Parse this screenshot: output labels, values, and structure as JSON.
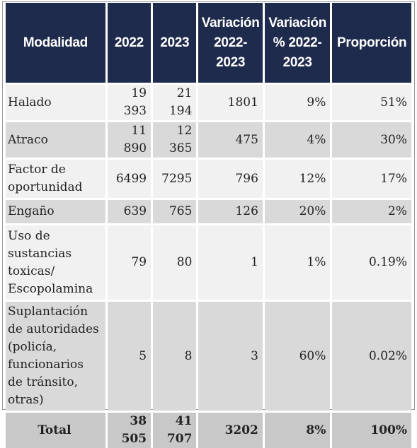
{
  "table": {
    "headers": [
      "Modalidad",
      "2022",
      "2023",
      "Variación 2022-2023",
      "Variación % 2022-2023",
      "Proporción"
    ],
    "rows": [
      {
        "modalidad": "Halado",
        "y2022": "19 393",
        "y2023": "21 194",
        "variacion": "1801",
        "variacion_pct": "9%",
        "proporcion": "51%"
      },
      {
        "modalidad": "Atraco",
        "y2022": "11 890",
        "y2023": "12 365",
        "variacion": "475",
        "variacion_pct": "4%",
        "proporcion": "30%"
      },
      {
        "modalidad": "Factor de oportunidad",
        "y2022": "6499",
        "y2023": "7295",
        "variacion": "796",
        "variacion_pct": "12%",
        "proporcion": "17%"
      },
      {
        "modalidad": "Engaño",
        "y2022": "639",
        "y2023": "765",
        "variacion": "126",
        "variacion_pct": "20%",
        "proporcion": "2%"
      },
      {
        "modalidad": "Uso de sustancias toxicas/ Escopolamina",
        "y2022": "79",
        "y2023": "80",
        "variacion": "1",
        "variacion_pct": "1%",
        "proporcion": "0.19%"
      },
      {
        "modalidad": "Suplantación de autoridades (policía, funcionarios de tránsito, otras)",
        "y2022": "5",
        "y2023": "8",
        "variacion": "3",
        "variacion_pct": "60%",
        "proporcion": "0.02%"
      }
    ],
    "total": {
      "modalidad": "Total",
      "y2022": "38 505",
      "y2023": "41 707",
      "variacion": "3202",
      "variacion_pct": "8%",
      "proporcion": "100%"
    }
  },
  "colors": {
    "header_bg": "#1f2b4d",
    "header_text": "#ffffff",
    "row_light": "#f1f1f1",
    "row_dark": "#d9d9d9",
    "total_row": "#c8c8c8"
  }
}
